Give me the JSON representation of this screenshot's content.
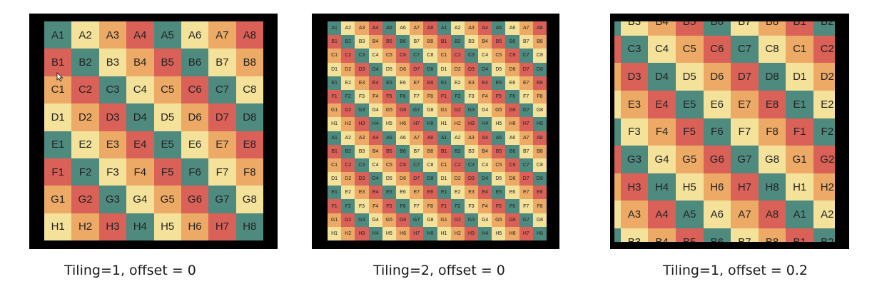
{
  "rows": [
    "A",
    "B",
    "C",
    "D",
    "E",
    "F",
    "G",
    "H"
  ],
  "cols": [
    "1",
    "2",
    "3",
    "4",
    "5",
    "6",
    "7",
    "8"
  ],
  "palette": {
    "teal": "#4f8a7f",
    "yellow": "#f4e19a",
    "orange": "#ecaa66",
    "red": "#d96158"
  },
  "color_pattern": [
    [
      "teal",
      "yellow",
      "orange",
      "red",
      "teal",
      "yellow",
      "orange",
      "red"
    ],
    [
      "red",
      "teal",
      "yellow",
      "orange",
      "red",
      "teal",
      "yellow",
      "orange"
    ],
    [
      "orange",
      "red",
      "teal",
      "yellow",
      "orange",
      "red",
      "teal",
      "yellow"
    ],
    [
      "yellow",
      "orange",
      "red",
      "teal",
      "yellow",
      "orange",
      "red",
      "teal"
    ],
    [
      "teal",
      "yellow",
      "orange",
      "red",
      "teal",
      "yellow",
      "orange",
      "red"
    ],
    [
      "red",
      "teal",
      "yellow",
      "orange",
      "red",
      "teal",
      "yellow",
      "orange"
    ],
    [
      "orange",
      "red",
      "teal",
      "yellow",
      "orange",
      "red",
      "teal",
      "yellow"
    ],
    [
      "yellow",
      "orange",
      "red",
      "teal",
      "yellow",
      "orange",
      "red",
      "teal"
    ]
  ],
  "panels": [
    {
      "caption": "Tiling=1, offset = 0",
      "tiling": 1,
      "offset": 0
    },
    {
      "caption": "Tiling=2, offset = 0",
      "tiling": 2,
      "offset": 0
    },
    {
      "caption": "Tiling=1, offset = 0.2",
      "tiling": 1,
      "offset": 0.2
    }
  ]
}
